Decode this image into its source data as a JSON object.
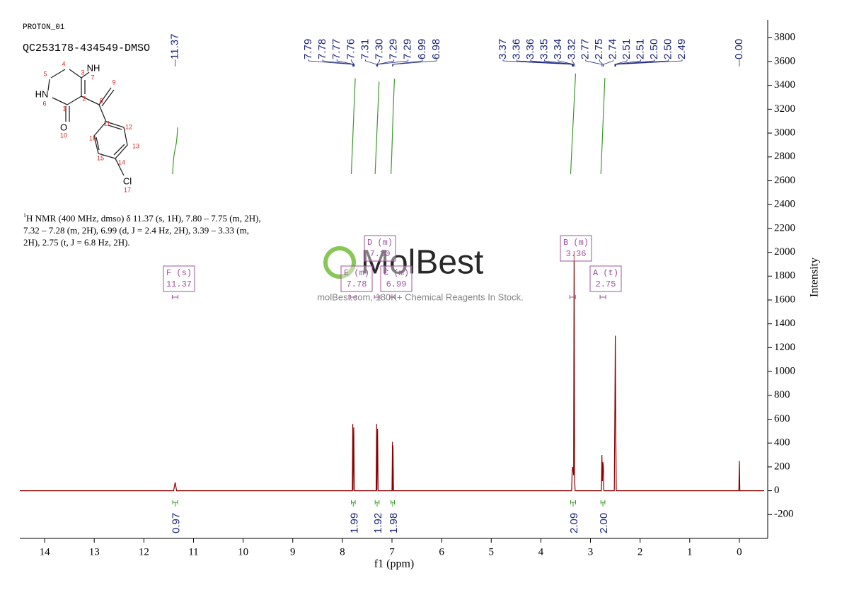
{
  "header": {
    "sample": "PROTON_01",
    "id": "QC253178-434549-DMSO"
  },
  "structure": {
    "atom_labels": [
      "NH",
      "HN",
      "O",
      "Cl"
    ],
    "atom_numbers": [
      1,
      2,
      3,
      4,
      5,
      6,
      7,
      8,
      9,
      10,
      11,
      12,
      13,
      14,
      15,
      16,
      17
    ]
  },
  "description": [
    "H NMR (400 MHz, dmso) δ 11.37 (s, 1H), 7.80 – 7.75 (m, 2H),",
    "7.32 – 7.28 (m, 2H), 6.99 (d, J = 2.4 Hz, 2H), 3.39 – 3.33 (m,",
    "2H), 2.75 (t, J = 6.8 Hz, 2H)."
  ],
  "description_sup": "1",
  "watermark": {
    "logo": "MolBest",
    "text": "molBest.com, 180K+ Chemical Reagents In Stock."
  },
  "chart_data": {
    "type": "line",
    "x_label": "f1 (ppm)",
    "y_label": "Intensity",
    "xlim": [
      14.5,
      -0.5
    ],
    "xticks": [
      14,
      13,
      12,
      11,
      10,
      9,
      8,
      7,
      6,
      5,
      4,
      3,
      2,
      1,
      0
    ],
    "ylim": [
      -400,
      3950
    ],
    "yticks": [
      -200,
      0,
      200,
      400,
      600,
      800,
      1000,
      1200,
      1400,
      1600,
      1800,
      2000,
      2200,
      2400,
      2600,
      2800,
      3000,
      3200,
      3400,
      3600,
      3800
    ],
    "series": [
      {
        "color": "#8b0000",
        "x": [
          14.5,
          11.4,
          11.37,
          11.34,
          7.8,
          7.79,
          7.785,
          7.77,
          7.76,
          7.32,
          7.31,
          7.305,
          7.29,
          7.28,
          7.0,
          6.99,
          6.985,
          6.98,
          6.97,
          3.38,
          3.37,
          3.36,
          3.35,
          3.34,
          3.33,
          3.32,
          3.31,
          2.78,
          2.77,
          2.76,
          2.75,
          2.74,
          2.73,
          2.52,
          2.51,
          2.505,
          2.5,
          2.495,
          2.49,
          2.48,
          0.01,
          0.0,
          -0.01,
          -0.5
        ],
        "values": [
          0,
          0,
          70,
          0,
          0,
          560,
          0,
          530,
          0,
          0,
          560,
          0,
          520,
          0,
          0,
          410,
          0,
          380,
          0,
          0,
          150,
          200,
          180,
          130,
          2010,
          100,
          0,
          0,
          300,
          80,
          240,
          200,
          0,
          0,
          600,
          900,
          1300,
          900,
          500,
          0,
          0,
          250,
          0,
          0
        ]
      }
    ],
    "peak_labels": [
      11.37,
      7.79,
      7.78,
      7.77,
      7.76,
      7.31,
      {
        "value": 7.3,
        "label": "7.30"
      },
      7.29,
      7.29,
      6.99,
      6.98,
      3.37,
      3.36,
      3.36,
      3.35,
      3.34,
      3.32,
      2.77,
      2.75,
      2.74,
      2.51,
      2.51,
      {
        "value": 2.5,
        "label": "2.50"
      },
      {
        "value": 2.5,
        "label": "2.50"
      },
      2.49,
      {
        "value": 0,
        "label": "0.00"
      }
    ],
    "integrals": [
      {
        "range": [
          11.42,
          11.32
        ],
        "value": 0.97
      },
      {
        "range": [
          7.82,
          7.74
        ],
        "value": 1.99
      },
      {
        "range": [
          7.34,
          7.26
        ],
        "value": 1.92
      },
      {
        "range": [
          7.02,
          6.95
        ],
        "value": 1.98
      },
      {
        "range": [
          3.4,
          3.3
        ],
        "value": 2.09
      },
      {
        "range": [
          2.79,
          2.71
        ],
        "value": {
          "value": 2,
          "label": "2.00"
        }
      }
    ],
    "multiplets": [
      {
        "name": "F (s)",
        "shift": "11.37"
      },
      {
        "name": "E (m)",
        "shift": "7.78"
      },
      {
        "name": "D (m)",
        "shift": "7.30"
      },
      {
        "name": "C (m)",
        "shift": "6.99"
      },
      {
        "name": "B (m)",
        "shift": "3.36"
      },
      {
        "name": "A (t)",
        "shift": "2.75"
      }
    ],
    "grid": false
  }
}
